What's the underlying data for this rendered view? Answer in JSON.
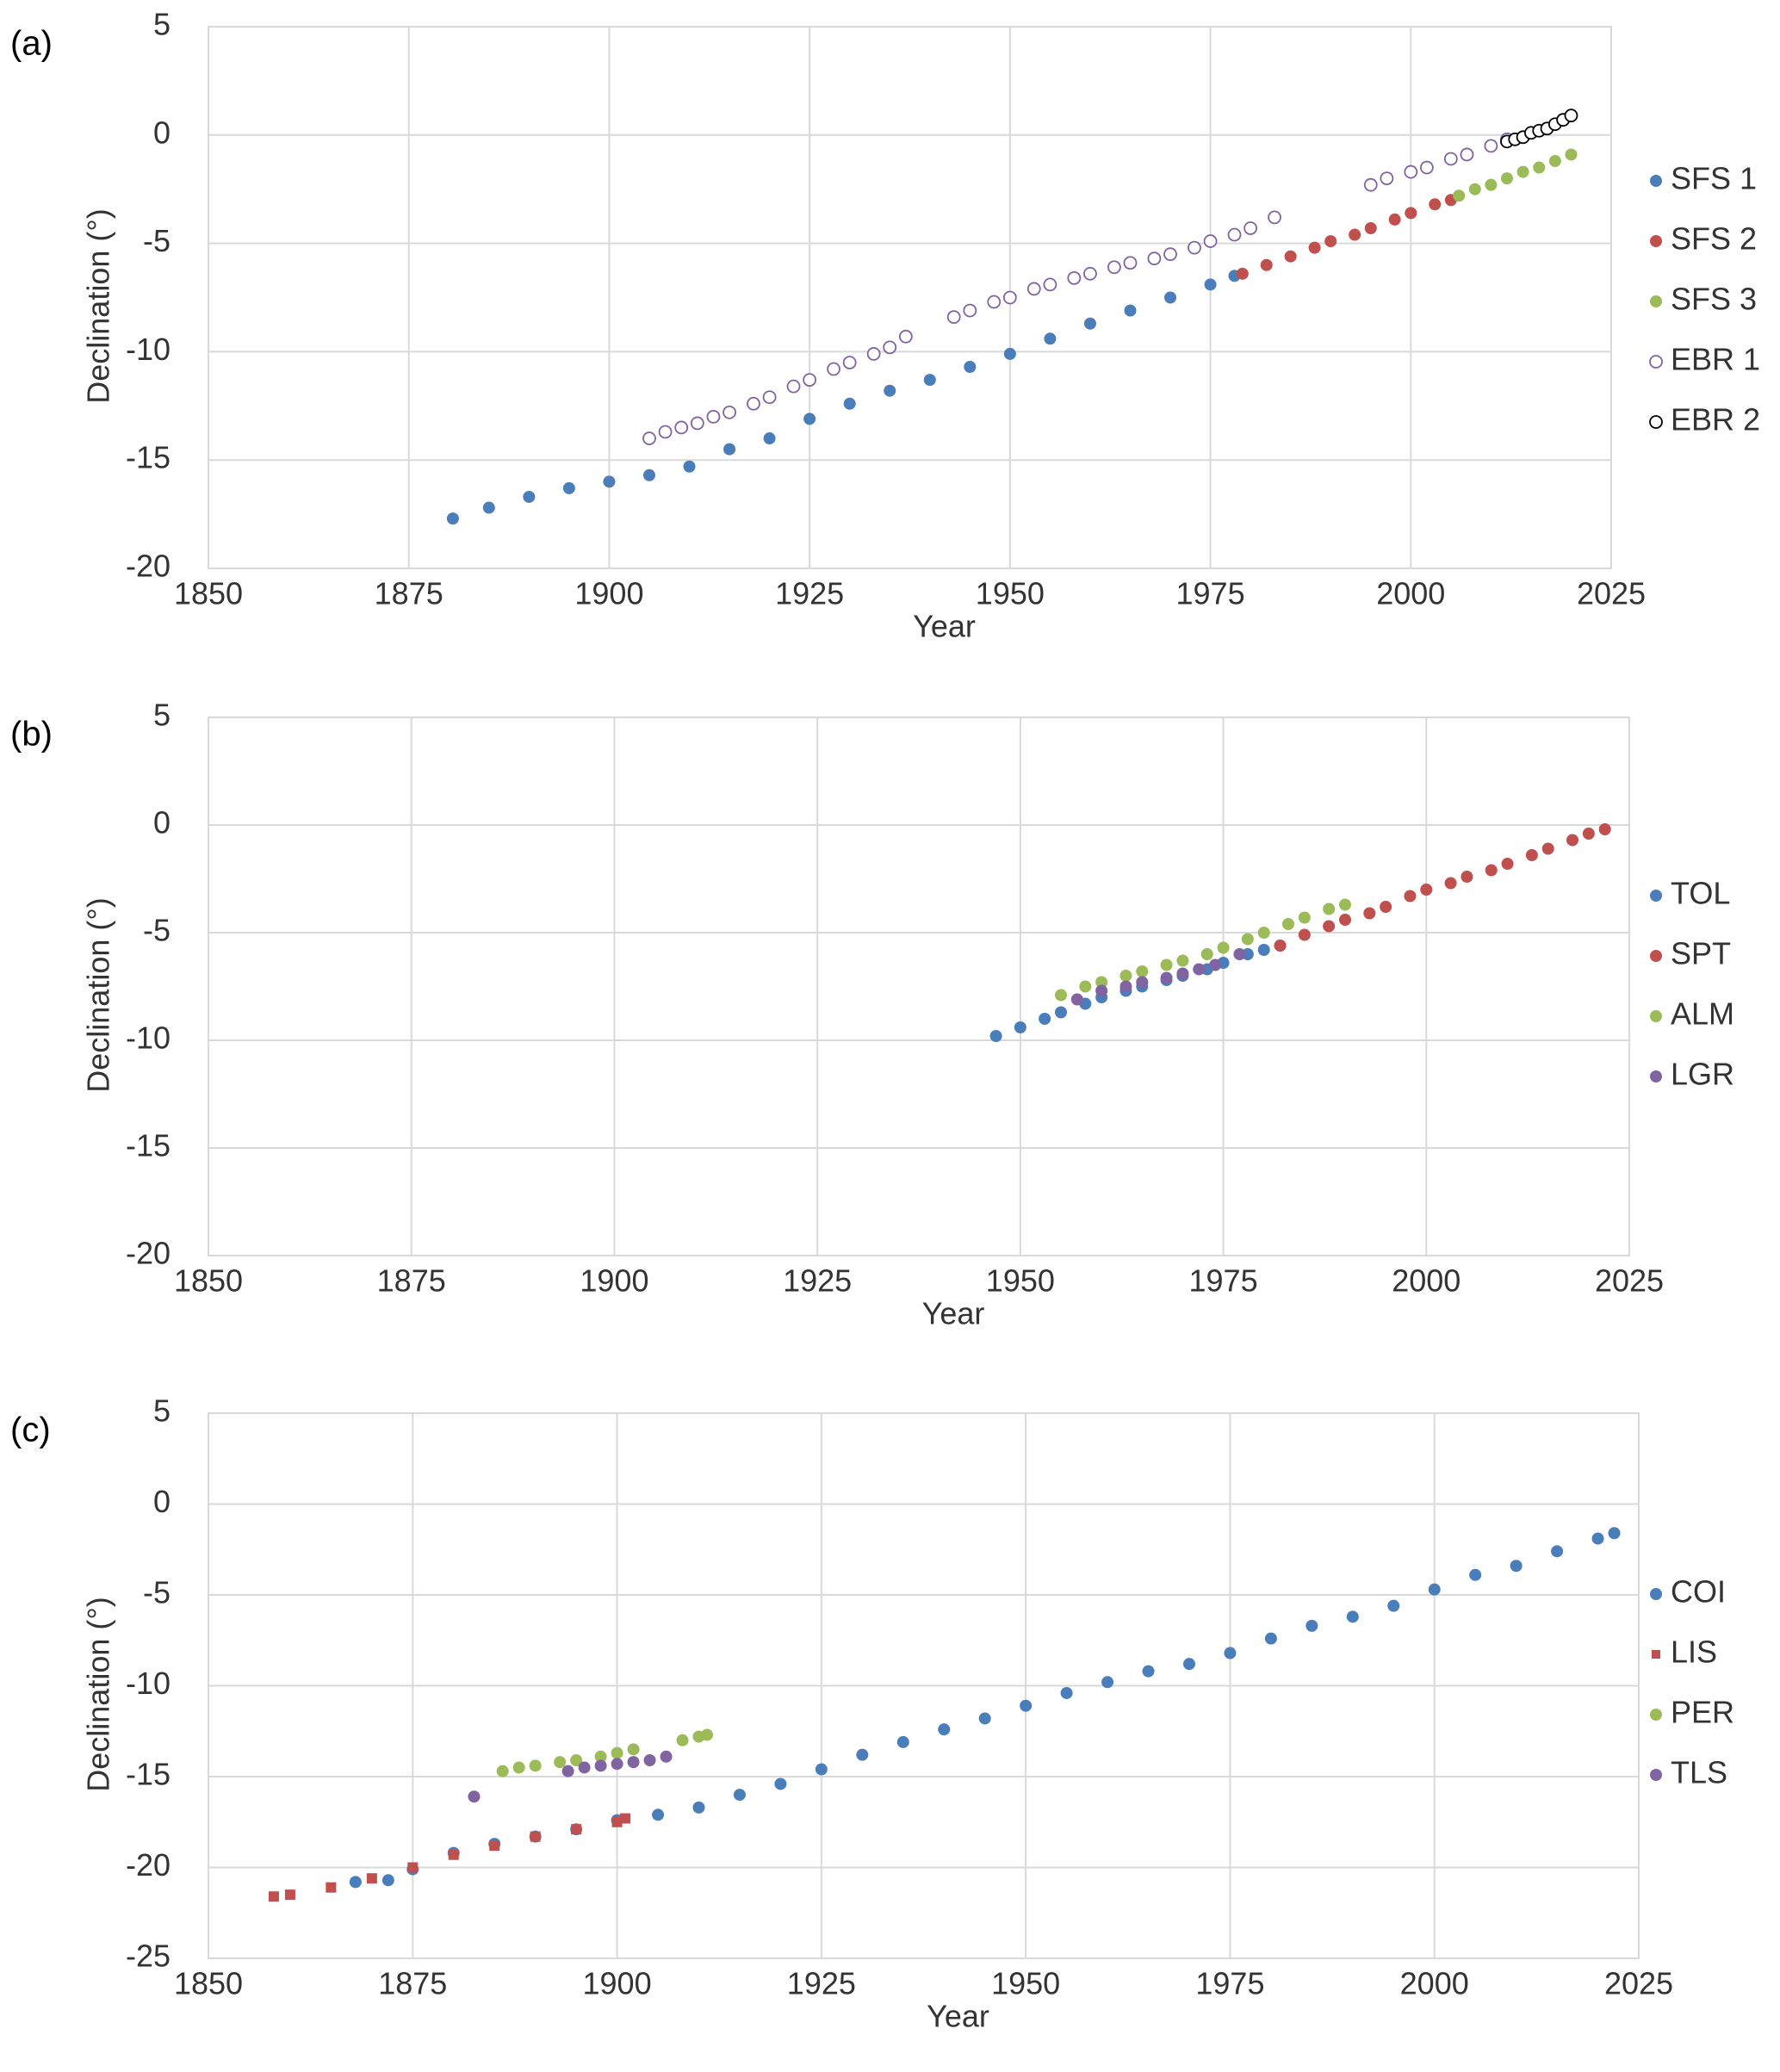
{
  "chart_data": [
    {
      "type": "scatter",
      "label": "(a)",
      "x_label": "Year",
      "y_label": "Declination (°)",
      "xlim": [
        1850,
        2025
      ],
      "xticks": [
        1850,
        1875,
        1900,
        1925,
        1950,
        1975,
        2000,
        2025
      ],
      "ylim": [
        -20,
        5
      ],
      "yticks": [
        -20,
        -15,
        -10,
        -5,
        0,
        5
      ],
      "grid": true,
      "series": [
        {
          "name": "SFS 1",
          "color": "#4a7ebb",
          "marker": "circle",
          "x": [
            1880.5,
            1885,
            1890,
            1895,
            1900,
            1905,
            1910,
            1915,
            1920,
            1925,
            1930,
            1935,
            1940,
            1945,
            1950,
            1955,
            1960,
            1965,
            1970,
            1975,
            1978
          ],
          "values": [
            -17.7,
            -17.2,
            -16.7,
            -16.3,
            -16.0,
            -15.7,
            -15.3,
            -14.5,
            -14.0,
            -13.1,
            -12.4,
            -11.8,
            -11.3,
            -10.7,
            -10.1,
            -9.4,
            -8.7,
            -8.1,
            -7.5,
            -6.9,
            -6.5
          ]
        },
        {
          "name": "SFS 2",
          "color": "#c0504d",
          "marker": "circle",
          "x": [
            1979,
            1982,
            1985,
            1988,
            1990,
            1993,
            1995,
            1998,
            2000,
            2003,
            2005
          ],
          "values": [
            -6.4,
            -6.0,
            -5.6,
            -5.2,
            -4.9,
            -4.6,
            -4.3,
            -3.9,
            -3.6,
            -3.2,
            -3.0
          ]
        },
        {
          "name": "SFS 3",
          "color": "#9bbb59",
          "marker": "circle",
          "x": [
            2006,
            2008,
            2010,
            2012,
            2014,
            2016,
            2018,
            2020
          ],
          "values": [
            -2.8,
            -2.5,
            -2.3,
            -2.0,
            -1.7,
            -1.5,
            -1.2,
            -0.9
          ]
        },
        {
          "name": "EBR 1",
          "color": "#8064a2",
          "marker": "open-circle",
          "x": [
            1905,
            1907,
            1909,
            1911,
            1913,
            1915,
            1918,
            1920,
            1923,
            1925,
            1928,
            1930,
            1933,
            1935,
            1937,
            1943,
            1945,
            1948,
            1950,
            1953,
            1955,
            1958,
            1960,
            1963,
            1965,
            1968,
            1970,
            1973,
            1975,
            1978,
            1980,
            1983,
            1995,
            1997,
            2000,
            2002,
            2005,
            2007,
            2010,
            2012
          ],
          "values": [
            -14.0,
            -13.7,
            -13.5,
            -13.3,
            -13.0,
            -12.8,
            -12.4,
            -12.1,
            -11.6,
            -11.3,
            -10.8,
            -10.5,
            -10.1,
            -9.8,
            -9.3,
            -8.4,
            -8.1,
            -7.7,
            -7.5,
            -7.1,
            -6.9,
            -6.6,
            -6.4,
            -6.1,
            -5.9,
            -5.7,
            -5.5,
            -5.2,
            -4.9,
            -4.6,
            -4.3,
            -3.8,
            -2.3,
            -2.0,
            -1.7,
            -1.5,
            -1.1,
            -0.9,
            -0.5,
            -0.2
          ]
        },
        {
          "name": "EBR 2",
          "color": "#000000",
          "marker": "open-circle",
          "x": [
            2012,
            2013,
            2014,
            2015,
            2016,
            2017,
            2018,
            2019,
            2020
          ],
          "values": [
            -0.3,
            -0.2,
            -0.1,
            0.1,
            0.2,
            0.3,
            0.5,
            0.7,
            0.9
          ]
        }
      ]
    },
    {
      "type": "scatter",
      "label": "(b)",
      "x_label": "Year",
      "y_label": "Declination (°)",
      "xlim": [
        1850,
        2025
      ],
      "xticks": [
        1850,
        1875,
        1900,
        1925,
        1950,
        1975,
        2000,
        2025
      ],
      "ylim": [
        -20,
        5
      ],
      "yticks": [
        -20,
        -15,
        -10,
        -5,
        0,
        5
      ],
      "grid": true,
      "series": [
        {
          "name": "TOL",
          "color": "#4a7ebb",
          "marker": "circle",
          "x": [
            1947,
            1950,
            1953,
            1955,
            1958,
            1960,
            1963,
            1965,
            1968,
            1970,
            1973,
            1975,
            1978,
            1980,
            1982
          ],
          "values": [
            -9.8,
            -9.4,
            -9.0,
            -8.7,
            -8.3,
            -8.0,
            -7.7,
            -7.5,
            -7.2,
            -7.0,
            -6.7,
            -6.4,
            -6.0,
            -5.8,
            -5.6
          ]
        },
        {
          "name": "SPT",
          "color": "#c0504d",
          "marker": "circle",
          "x": [
            1982,
            1985,
            1988,
            1990,
            1993,
            1995,
            1998,
            2000,
            2003,
            2005,
            2008,
            2010,
            2013,
            2015,
            2018,
            2020,
            2022
          ],
          "values": [
            -5.6,
            -5.1,
            -4.7,
            -4.4,
            -4.1,
            -3.8,
            -3.3,
            -3.0,
            -2.7,
            -2.4,
            -2.1,
            -1.8,
            -1.4,
            -1.1,
            -0.7,
            -0.4,
            -0.2
          ]
        },
        {
          "name": "ALM",
          "color": "#9bbb59",
          "marker": "circle",
          "x": [
            1955,
            1958,
            1960,
            1963,
            1965,
            1968,
            1970,
            1973,
            1975,
            1978,
            1980,
            1983,
            1985,
            1988,
            1990
          ],
          "values": [
            -7.9,
            -7.5,
            -7.3,
            -7.0,
            -6.8,
            -6.5,
            -6.3,
            -6.0,
            -5.7,
            -5.3,
            -5.0,
            -4.6,
            -4.3,
            -3.9,
            -3.7
          ]
        },
        {
          "name": "LGR",
          "color": "#8064a2",
          "marker": "circle",
          "x": [
            1957,
            1960,
            1963,
            1965,
            1968,
            1970,
            1972,
            1974,
            1977
          ],
          "values": [
            -8.1,
            -7.7,
            -7.5,
            -7.3,
            -7.1,
            -6.9,
            -6.7,
            -6.5,
            -6.0
          ]
        }
      ]
    },
    {
      "type": "scatter",
      "label": "(c)",
      "x_label": "Year",
      "y_label": "Declination (°)",
      "xlim": [
        1850,
        2025
      ],
      "xticks": [
        1850,
        1875,
        1900,
        1925,
        1950,
        1975,
        2000,
        2025
      ],
      "ylim": [
        -25,
        5
      ],
      "yticks": [
        -25,
        -20,
        -15,
        -10,
        -5,
        0,
        5
      ],
      "grid": true,
      "series": [
        {
          "name": "COI",
          "color": "#4a7ebb",
          "marker": "circle",
          "x": [
            1868,
            1872,
            1875,
            1880,
            1885,
            1890,
            1895,
            1900,
            1905,
            1910,
            1915,
            1920,
            1925,
            1930,
            1935,
            1940,
            1945,
            1950,
            1955,
            1960,
            1965,
            1970,
            1975,
            1980,
            1985,
            1990,
            1995,
            2000,
            2005,
            2010,
            2015,
            2020,
            2022
          ],
          "values": [
            -20.8,
            -20.7,
            -20.1,
            -19.2,
            -18.7,
            -18.3,
            -17.9,
            -17.4,
            -17.1,
            -16.7,
            -16.0,
            -15.4,
            -14.6,
            -13.8,
            -13.1,
            -12.4,
            -11.8,
            -11.1,
            -10.4,
            -9.8,
            -9.2,
            -8.8,
            -8.2,
            -7.4,
            -6.7,
            -6.2,
            -5.6,
            -4.7,
            -3.9,
            -3.4,
            -2.6,
            -1.9,
            -1.6
          ]
        },
        {
          "name": "LIS",
          "color": "#c0504d",
          "marker": "square",
          "x": [
            1858,
            1860,
            1865,
            1870,
            1875,
            1880,
            1885,
            1890,
            1895,
            1900,
            1901
          ],
          "values": [
            -21.6,
            -21.5,
            -21.1,
            -20.6,
            -20.0,
            -19.3,
            -18.8,
            -18.3,
            -17.9,
            -17.5,
            -17.3
          ]
        },
        {
          "name": "PER",
          "color": "#9bbb59",
          "marker": "circle",
          "x": [
            1886,
            1888,
            1890,
            1893,
            1895,
            1898,
            1900,
            1902,
            1908,
            1910,
            1911
          ],
          "values": [
            -14.7,
            -14.5,
            -14.4,
            -14.2,
            -14.1,
            -13.9,
            -13.7,
            -13.5,
            -13.0,
            -12.8,
            -12.7
          ]
        },
        {
          "name": "TLS",
          "color": "#8064a2",
          "marker": "circle",
          "x": [
            1882.5,
            1894,
            1896,
            1898,
            1900,
            1902,
            1904,
            1906
          ],
          "values": [
            -16.1,
            -14.7,
            -14.5,
            -14.4,
            -14.3,
            -14.2,
            -14.1,
            -13.9
          ]
        }
      ]
    }
  ]
}
